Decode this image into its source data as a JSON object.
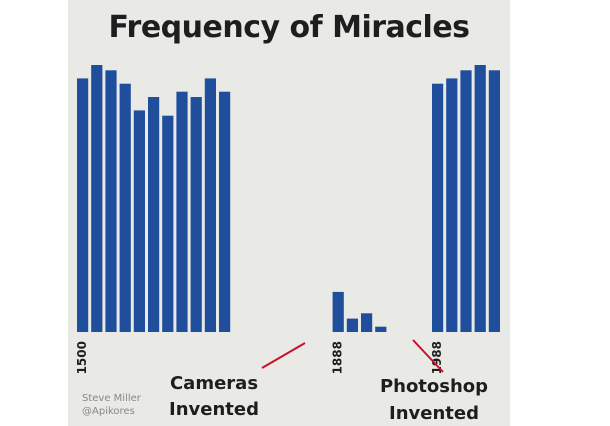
{
  "chart_data": {
    "type": "bar",
    "title": "Frequency of Miracles",
    "xlabel": "",
    "ylabel": "",
    "ylim": [
      0,
      100
    ],
    "grid": false,
    "tick_labels": [
      {
        "label": "1500",
        "bar_index": 0
      },
      {
        "label": "1888",
        "bar_index": 18
      },
      {
        "label": "1988",
        "bar_index": 25
      }
    ],
    "bars": [
      {
        "index": 0,
        "value": 95
      },
      {
        "index": 1,
        "value": 100
      },
      {
        "index": 2,
        "value": 98
      },
      {
        "index": 3,
        "value": 93
      },
      {
        "index": 4,
        "value": 83
      },
      {
        "index": 5,
        "value": 88
      },
      {
        "index": 6,
        "value": 81
      },
      {
        "index": 7,
        "value": 90
      },
      {
        "index": 8,
        "value": 88
      },
      {
        "index": 9,
        "value": 95
      },
      {
        "index": 10,
        "value": 90
      },
      {
        "index": 18,
        "value": 15
      },
      {
        "index": 19,
        "value": 5
      },
      {
        "index": 20,
        "value": 7
      },
      {
        "index": 21,
        "value": 2
      },
      {
        "index": 25,
        "value": 93
      },
      {
        "index": 26,
        "value": 95
      },
      {
        "index": 27,
        "value": 98
      },
      {
        "index": 28,
        "value": 100
      },
      {
        "index": 29,
        "value": 98
      }
    ],
    "annotations": [
      {
        "text": "Cameras Invented",
        "line1": "Cameras",
        "line2": "Invented",
        "points_to": "1888"
      },
      {
        "text": "Photoshop Invented",
        "line1": "Photoshop",
        "line2": "Invented",
        "points_to": "1988"
      }
    ],
    "colors": {
      "bar": "#1f4e9c",
      "annotation_line": "#c8102e",
      "background": "#e9e9e6",
      "text": "#1e1e1e"
    }
  },
  "credit": {
    "line1": "Steve Miller",
    "line2": "@Apikores"
  }
}
